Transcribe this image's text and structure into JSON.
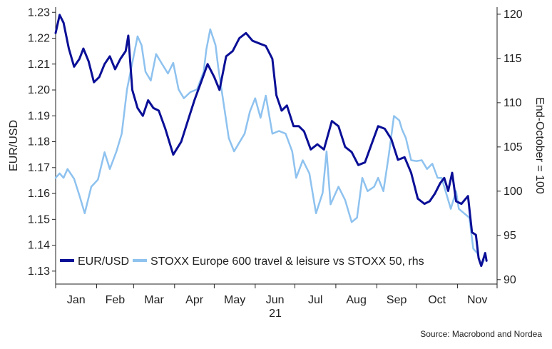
{
  "chart_data": {
    "type": "line",
    "year_label": "21",
    "source": "Source: Macrobond and Nordea",
    "x": {
      "months": [
        "Jan",
        "Feb",
        "Mar",
        "Apr",
        "May",
        "Jun",
        "Jul",
        "Aug",
        "Sep",
        "Oct",
        "Nov"
      ],
      "range": [
        "2021-01-01",
        "2021-11-30"
      ]
    },
    "ylabel_left": "EUR/USD",
    "ylabel_right": "End-October = 100",
    "ylim_left": [
      1.125,
      1.232
    ],
    "ylim_right": [
      89.5,
      120.8
    ],
    "yticks_left": [
      "1.13",
      "1.14",
      "1.15",
      "1.16",
      "1.17",
      "1.18",
      "1.19",
      "1.20",
      "1.21",
      "1.22",
      "1.23"
    ],
    "yticks_right": [
      "90",
      "95",
      "100",
      "105",
      "110",
      "115",
      "120"
    ],
    "grid": false,
    "legend": "bottom-left",
    "series": [
      {
        "name": "EUR/USD",
        "axis": "left",
        "color": "#0a0f96",
        "points": [
          [
            "2021-01-01",
            1.222
          ],
          [
            "2021-01-04",
            1.229
          ],
          [
            "2021-01-07",
            1.226
          ],
          [
            "2021-01-11",
            1.216
          ],
          [
            "2021-01-15",
            1.209
          ],
          [
            "2021-01-19",
            1.212
          ],
          [
            "2021-01-22",
            1.216
          ],
          [
            "2021-01-26",
            1.211
          ],
          [
            "2021-01-30",
            1.203
          ],
          [
            "2021-02-03",
            1.205
          ],
          [
            "2021-02-07",
            1.21
          ],
          [
            "2021-02-11",
            1.213
          ],
          [
            "2021-02-15",
            1.208
          ],
          [
            "2021-02-19",
            1.212
          ],
          [
            "2021-02-23",
            1.215
          ],
          [
            "2021-02-25",
            1.221
          ],
          [
            "2021-02-28",
            1.2
          ],
          [
            "2021-03-04",
            1.193
          ],
          [
            "2021-03-08",
            1.19
          ],
          [
            "2021-03-12",
            1.196
          ],
          [
            "2021-03-16",
            1.193
          ],
          [
            "2021-03-20",
            1.192
          ],
          [
            "2021-03-25",
            1.185
          ],
          [
            "2021-03-31",
            1.175
          ],
          [
            "2021-04-06",
            1.18
          ],
          [
            "2021-04-11",
            1.188
          ],
          [
            "2021-04-16",
            1.196
          ],
          [
            "2021-04-21",
            1.203
          ],
          [
            "2021-04-26",
            1.21
          ],
          [
            "2021-05-01",
            1.205
          ],
          [
            "2021-05-05",
            1.2
          ],
          [
            "2021-05-10",
            1.213
          ],
          [
            "2021-05-15",
            1.215
          ],
          [
            "2021-05-20",
            1.22
          ],
          [
            "2021-05-25",
            1.222
          ],
          [
            "2021-05-30",
            1.219
          ],
          [
            "2021-06-04",
            1.218
          ],
          [
            "2021-06-09",
            1.217
          ],
          [
            "2021-06-14",
            1.212
          ],
          [
            "2021-06-17",
            1.198
          ],
          [
            "2021-06-21",
            1.192
          ],
          [
            "2021-06-25",
            1.194
          ],
          [
            "2021-06-30",
            1.186
          ],
          [
            "2021-07-04",
            1.186
          ],
          [
            "2021-07-08",
            1.184
          ],
          [
            "2021-07-13",
            1.177
          ],
          [
            "2021-07-18",
            1.179
          ],
          [
            "2021-07-23",
            1.177
          ],
          [
            "2021-07-29",
            1.188
          ],
          [
            "2021-08-03",
            1.186
          ],
          [
            "2021-08-08",
            1.178
          ],
          [
            "2021-08-13",
            1.176
          ],
          [
            "2021-08-18",
            1.171
          ],
          [
            "2021-08-23",
            1.172
          ],
          [
            "2021-08-28",
            1.179
          ],
          [
            "2021-09-02",
            1.186
          ],
          [
            "2021-09-07",
            1.185
          ],
          [
            "2021-09-12",
            1.181
          ],
          [
            "2021-09-17",
            1.173
          ],
          [
            "2021-09-22",
            1.174
          ],
          [
            "2021-09-27",
            1.168
          ],
          [
            "2021-10-02",
            1.158
          ],
          [
            "2021-10-07",
            1.156
          ],
          [
            "2021-10-11",
            1.157
          ],
          [
            "2021-10-15",
            1.16
          ],
          [
            "2021-10-19",
            1.164
          ],
          [
            "2021-10-22",
            1.166
          ],
          [
            "2021-10-25",
            1.161
          ],
          [
            "2021-10-28",
            1.168
          ],
          [
            "2021-10-31",
            1.157
          ],
          [
            "2021-11-04",
            1.156
          ],
          [
            "2021-11-09",
            1.159
          ],
          [
            "2021-11-12",
            1.145
          ],
          [
            "2021-11-15",
            1.144
          ],
          [
            "2021-11-17",
            1.135
          ],
          [
            "2021-11-19",
            1.132
          ],
          [
            "2021-11-22",
            1.137
          ],
          [
            "2021-11-23",
            1.134
          ]
        ]
      },
      {
        "name": "STOXX Europe 600 travel & leisure vs STOXX 50, rhs",
        "axis": "right",
        "color": "#8ec2ef",
        "points": [
          [
            "2021-01-01",
            101.5
          ],
          [
            "2021-01-04",
            102
          ],
          [
            "2021-01-07",
            101.5
          ],
          [
            "2021-01-10",
            102.5
          ],
          [
            "2021-01-15",
            101.4
          ],
          [
            "2021-01-19",
            99.5
          ],
          [
            "2021-01-23",
            97.5
          ],
          [
            "2021-01-28",
            100.5
          ],
          [
            "2021-02-02",
            101.3
          ],
          [
            "2021-02-07",
            104.4
          ],
          [
            "2021-02-11",
            102.5
          ],
          [
            "2021-02-16",
            104.5
          ],
          [
            "2021-02-20",
            106.5
          ],
          [
            "2021-02-24",
            111.5
          ],
          [
            "2021-02-28",
            114.5
          ],
          [
            "2021-03-04",
            117.5
          ],
          [
            "2021-03-07",
            116.5
          ],
          [
            "2021-03-10",
            113.5
          ],
          [
            "2021-03-14",
            112.5
          ],
          [
            "2021-03-18",
            115.5
          ],
          [
            "2021-03-22",
            114.5
          ],
          [
            "2021-03-27",
            113.3
          ],
          [
            "2021-03-31",
            114.5
          ],
          [
            "2021-04-04",
            111.5
          ],
          [
            "2021-04-08",
            110.5
          ],
          [
            "2021-04-13",
            111.2
          ],
          [
            "2021-04-18",
            111.5
          ],
          [
            "2021-04-23",
            113.5
          ],
          [
            "2021-04-25",
            116
          ],
          [
            "2021-04-28",
            118.3
          ],
          [
            "2021-05-02",
            116.5
          ],
          [
            "2021-05-04",
            114
          ],
          [
            "2021-05-08",
            110
          ],
          [
            "2021-05-12",
            106
          ],
          [
            "2021-05-16",
            104.5
          ],
          [
            "2021-05-20",
            105.5
          ],
          [
            "2021-05-24",
            106.5
          ],
          [
            "2021-05-28",
            109
          ],
          [
            "2021-06-01",
            110.5
          ],
          [
            "2021-06-05",
            108.3
          ],
          [
            "2021-06-09",
            110.8
          ],
          [
            "2021-06-14",
            106.5
          ],
          [
            "2021-06-19",
            106.8
          ],
          [
            "2021-06-24",
            106.5
          ],
          [
            "2021-06-29",
            104.5
          ],
          [
            "2021-07-02",
            101.5
          ],
          [
            "2021-07-07",
            103.5
          ],
          [
            "2021-07-12",
            102
          ],
          [
            "2021-07-17",
            97.5
          ],
          [
            "2021-07-22",
            99.8
          ],
          [
            "2021-07-25",
            104.5
          ],
          [
            "2021-07-28",
            98.5
          ],
          [
            "2021-08-03",
            100.5
          ],
          [
            "2021-08-08",
            99
          ],
          [
            "2021-08-13",
            96.5
          ],
          [
            "2021-08-17",
            97
          ],
          [
            "2021-08-21",
            101.5
          ],
          [
            "2021-08-25",
            100
          ],
          [
            "2021-08-30",
            100.5
          ],
          [
            "2021-09-02",
            101.5
          ],
          [
            "2021-09-06",
            100
          ],
          [
            "2021-09-10",
            104
          ],
          [
            "2021-09-14",
            108.5
          ],
          [
            "2021-09-18",
            108
          ],
          [
            "2021-09-20",
            107
          ],
          [
            "2021-09-23",
            106
          ],
          [
            "2021-09-27",
            103.5
          ],
          [
            "2021-10-01",
            103.4
          ],
          [
            "2021-10-05",
            103.5
          ],
          [
            "2021-10-09",
            102.5
          ],
          [
            "2021-10-13",
            103.1
          ],
          [
            "2021-10-17",
            101.5
          ],
          [
            "2021-10-20",
            101.5
          ],
          [
            "2021-10-24",
            99.5
          ],
          [
            "2021-10-27",
            98
          ],
          [
            "2021-10-31",
            100
          ],
          [
            "2021-11-02",
            98
          ],
          [
            "2021-11-06",
            97.5
          ],
          [
            "2021-11-10",
            97
          ],
          [
            "2021-11-13",
            93.5
          ],
          [
            "2021-11-16",
            93
          ],
          [
            "2021-11-19",
            91.6
          ],
          [
            "2021-11-21",
            92.2
          ]
        ]
      }
    ]
  }
}
